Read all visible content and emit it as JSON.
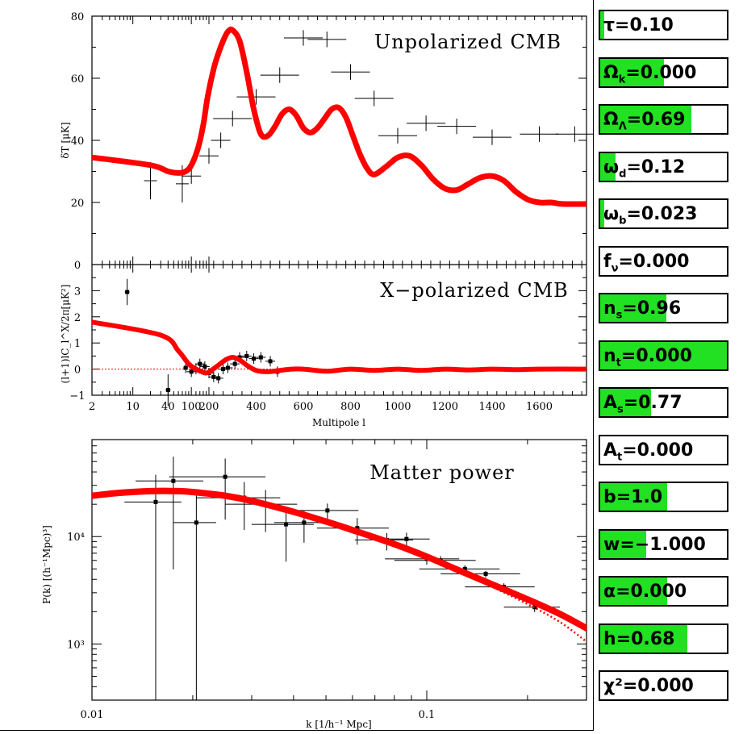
{
  "colors": {
    "model": "#ff0000",
    "data": "#000000",
    "slider_fill": "#22e022"
  },
  "chart_data": [
    {
      "type": "line",
      "title": "Unpolarized CMB",
      "ylabel": "δT [μK]",
      "xlabel": "",
      "xlim": [
        2,
        1800
      ],
      "ylim": [
        0,
        80
      ],
      "y_ticks": [
        "0",
        "20",
        "40",
        "60",
        "80"
      ],
      "grid": false,
      "series": [
        {
          "kind": "model",
          "x": [
            2,
            20,
            40,
            60,
            80,
            100,
            130,
            160,
            190,
            220,
            240,
            260,
            280,
            300,
            330,
            360,
            390,
            420,
            450,
            480,
            510,
            540,
            570,
            600,
            630,
            660,
            690,
            720,
            750,
            780,
            810,
            840,
            870,
            900,
            950,
            1000,
            1050,
            1100,
            1150,
            1200,
            1250,
            1300,
            1350,
            1400,
            1450,
            1500,
            1550,
            1600,
            1650,
            1700,
            1800
          ],
          "y": [
            34.5,
            32,
            30,
            29.5,
            30,
            32,
            37.5,
            45,
            54,
            63,
            68,
            72,
            75,
            75.5,
            72,
            62,
            50,
            42,
            41.5,
            44.5,
            48.5,
            50,
            48,
            44,
            42.5,
            44,
            47,
            50,
            50.5,
            47.5,
            41.5,
            35.5,
            31,
            29,
            31.5,
            34.5,
            35,
            32,
            27.5,
            24.5,
            24,
            26,
            28,
            28.5,
            27,
            23.5,
            21,
            20,
            20,
            19.5,
            19.5
          ]
        },
        {
          "kind": "data",
          "x": [
            20,
            70,
            100,
            200,
            250,
            300,
            400,
            500,
            600,
            700,
            800,
            900,
            1000,
            1120,
            1250,
            1400,
            1600,
            1750
          ],
          "y": [
            27,
            26,
            28.5,
            35,
            40,
            47,
            54,
            61,
            73,
            72.5,
            62,
            53.5,
            41.5,
            45.5,
            44.5,
            41,
            42,
            42
          ]
        }
      ]
    },
    {
      "type": "line",
      "title": "X−polarized CMB",
      "ylabel": "(l+1)lC_l^X/2π[μK²]",
      "xlabel": "Multipole l",
      "xlim": [
        2,
        1800
      ],
      "ylim": [
        -1,
        4
      ],
      "y_ticks": [
        "−1",
        "0",
        "1",
        "2",
        "3"
      ],
      "x_ticks": [
        "2",
        "10",
        "40",
        "100",
        "200",
        "400",
        "600",
        "800",
        "1000",
        "1200",
        "1400",
        "1600"
      ],
      "series": [
        {
          "kind": "model",
          "x": [
            2,
            30,
            60,
            90,
            120,
            150,
            180,
            210,
            240,
            270,
            300,
            330,
            360,
            400,
            450,
            500,
            550,
            600,
            700,
            800,
            900,
            1000,
            1100,
            1200,
            1300,
            1400,
            1500,
            1600,
            1800
          ],
          "y": [
            1.8,
            1.3,
            0.7,
            0.2,
            0.0,
            -0.1,
            -0.15,
            -0.05,
            0.15,
            0.35,
            0.45,
            0.35,
            0.15,
            -0.05,
            -0.1,
            -0.05,
            0.0,
            0.0,
            -0.08,
            0.0,
            -0.05,
            0.0,
            -0.05,
            0.0,
            -0.03,
            0.0,
            -0.02,
            0.0,
            0.0
          ]
        },
        {
          "kind": "data",
          "x": [
            8,
            40,
            80,
            100,
            120,
            140,
            170,
            200,
            220,
            240,
            260,
            280,
            310,
            330,
            360,
            390,
            420,
            460,
            490
          ],
          "y": [
            2.95,
            -0.8,
            0.05,
            -0.1,
            0.0,
            0.2,
            0.1,
            -0.15,
            -0.3,
            -0.35,
            0.0,
            0.05,
            0.2,
            0.45,
            0.5,
            0.4,
            0.45,
            0.3,
            -0.1
          ]
        }
      ]
    },
    {
      "type": "line",
      "title": "Matter power",
      "ylabel": "P(k) [(h⁻¹Mpc)³]",
      "xlabel": "k [1/h⁻¹ Mpc]",
      "xlim": [
        0.01,
        0.3
      ],
      "ylim": [
        300,
        80000
      ],
      "x_scale": "log",
      "y_scale": "log",
      "x_ticks": [
        "0.01",
        "0.1"
      ],
      "y_ticks": [
        "10³",
        "10⁴"
      ],
      "series": [
        {
          "kind": "model",
          "x": [
            0.01,
            0.012,
            0.015,
            0.018,
            0.02,
            0.025,
            0.03,
            0.04,
            0.05,
            0.06,
            0.08,
            0.1,
            0.12,
            0.15,
            0.2,
            0.25,
            0.3
          ],
          "y": [
            24000,
            25500,
            26500,
            26500,
            26000,
            24000,
            21500,
            17000,
            13800,
            11500,
            8500,
            6500,
            5100,
            3800,
            2600,
            1900,
            1400
          ]
        },
        {
          "kind": "model-nonlinear",
          "x": [
            0.15,
            0.2,
            0.25,
            0.3
          ],
          "y": [
            3650,
            2350,
            1600,
            1050
          ]
        },
        {
          "kind": "data",
          "x": [
            0.0155,
            0.0175,
            0.0205,
            0.025,
            0.0285,
            0.033,
            0.038,
            0.043,
            0.0505,
            0.062,
            0.076,
            0.087,
            0.1,
            0.11,
            0.13,
            0.15,
            0.17,
            0.21
          ],
          "y": [
            21000,
            33000,
            13500,
            36000,
            23000,
            20000,
            13000,
            13500,
            17500,
            12000,
            9300,
            9500,
            6200,
            6000,
            5000,
            4500,
            3400,
            2200
          ]
        }
      ]
    }
  ],
  "params": [
    {
      "label": "τ=0.10",
      "fill": 0.03
    },
    {
      "label": "Ω_k=0.000",
      "fill": 0.5
    },
    {
      "label": "Ω_Λ=0.69",
      "fill": 0.72
    },
    {
      "label": "ω_d=0.12",
      "fill": 0.12
    },
    {
      "label": "ω_b=0.023",
      "fill": 0.03
    },
    {
      "label": "f_ν=0.000",
      "fill": 0.0
    },
    {
      "label": "n_s=0.96",
      "fill": 0.52
    },
    {
      "label": "n_t=0.000",
      "fill": 1.0
    },
    {
      "label": "A_s=0.77",
      "fill": 0.4
    },
    {
      "label": "A_t=0.000",
      "fill": 0.0
    },
    {
      "label": "b=1.0",
      "fill": 0.53
    },
    {
      "label": "w=−1.000",
      "fill": 0.36
    },
    {
      "label": "α=0.000",
      "fill": 0.53
    },
    {
      "label": "h=0.68",
      "fill": 0.69
    },
    {
      "label": "χ²=0.000",
      "fill": 0.0
    }
  ]
}
